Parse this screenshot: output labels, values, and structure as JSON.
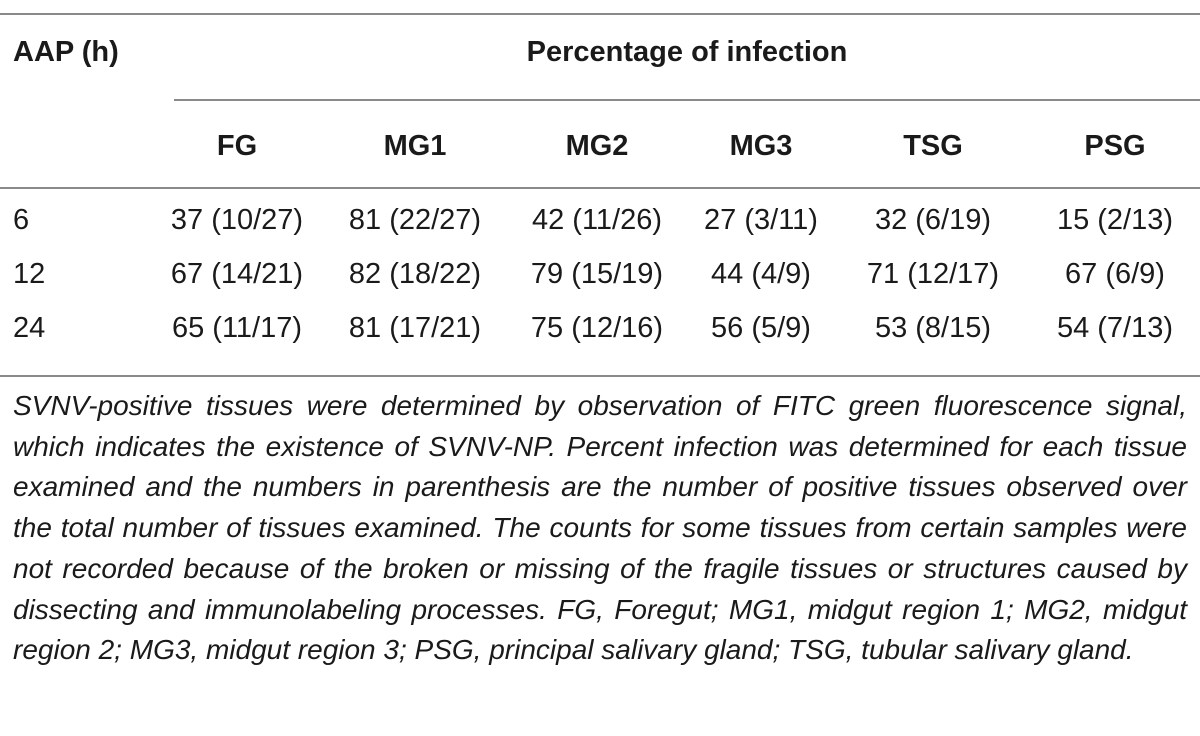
{
  "table": {
    "row_header": "AAP (h)",
    "spanner": "Percentage of infection",
    "columns": [
      "FG",
      "MG1",
      "MG2",
      "MG3",
      "TSG",
      "PSG"
    ],
    "rows": [
      {
        "label": "6",
        "cells": [
          "37 (10/27)",
          "81 (22/27)",
          "42 (11/26)",
          "27 (3/11)",
          "32 (6/19)",
          "15 (2/13)"
        ]
      },
      {
        "label": "12",
        "cells": [
          "67 (14/21)",
          "82 (18/22)",
          "79 (15/19)",
          "44 (4/9)",
          "71 (12/17)",
          "67 (6/9)"
        ]
      },
      {
        "label": "24",
        "cells": [
          "65 (11/17)",
          "81 (17/21)",
          "75 (12/16)",
          "56 (5/9)",
          "53 (8/15)",
          "54 (7/13)"
        ]
      }
    ]
  },
  "footnote": "SVNV-positive tissues were determined by observation of FITC green fluorescence signal, which indicates the existence of SVNV-NP. Percent infection was determined for each tissue examined and the numbers in parenthesis are the number of positive tissues observed over the total number of tissues examined. The counts for some tissues from certain samples were not recorded because of the broken or missing of the fragile tissues or structures caused by dissecting and immunolabeling processes. FG, Foregut; MG1, midgut region 1; MG2, midgut region 2; MG3, midgut region 3; PSG, principal salivary gland; TSG, tubular salivary gland."
}
